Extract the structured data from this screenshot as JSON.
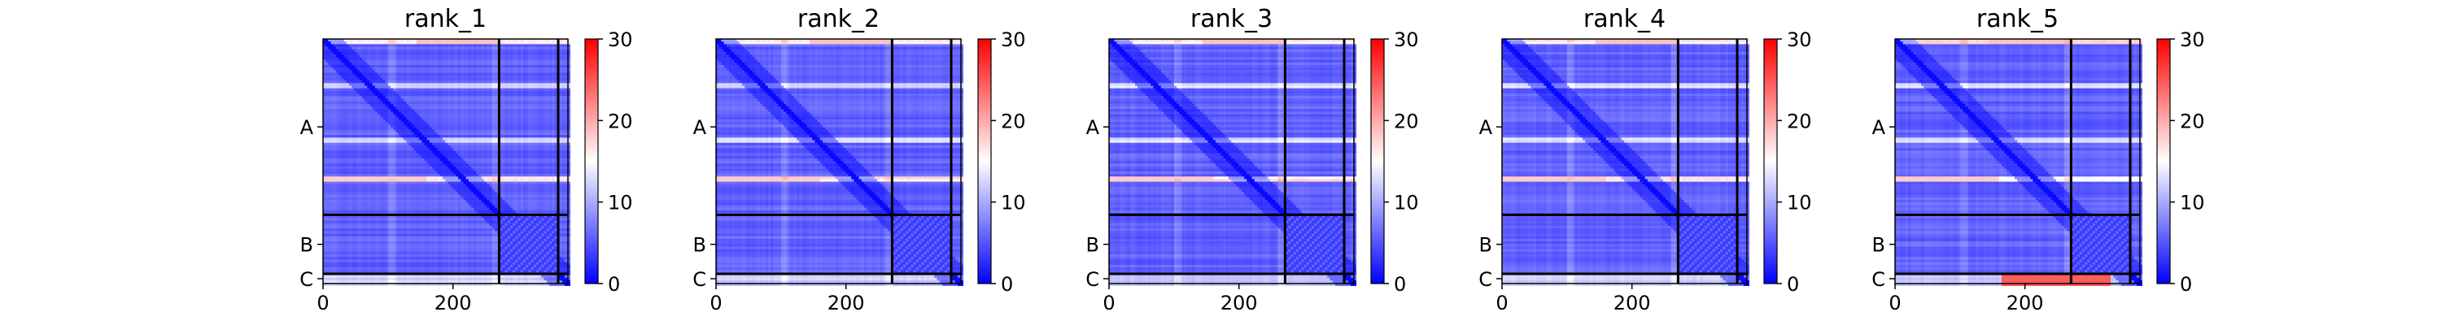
{
  "chart_data": [
    {
      "type": "heatmap",
      "title": "rank_1",
      "x_ticks": [
        "0",
        "200"
      ],
      "y_ticks": [
        "A",
        "B",
        "C"
      ],
      "chain_boundaries": [
        271,
        362,
        377
      ],
      "x_range": [
        0,
        377
      ],
      "colorbar": {
        "ticks": [
          "0",
          "10",
          "20",
          "30"
        ],
        "range": [
          0,
          30
        ]
      },
      "high_error_band_chain": "",
      "colormap": [
        "#0000ff",
        "#ffffff",
        "#ff0000"
      ]
    },
    {
      "type": "heatmap",
      "title": "rank_2",
      "x_ticks": [
        "0",
        "200"
      ],
      "y_ticks": [
        "A",
        "B",
        "C"
      ],
      "chain_boundaries": [
        271,
        362,
        377
      ],
      "x_range": [
        0,
        377
      ],
      "colorbar": {
        "ticks": [
          "0",
          "10",
          "20",
          "30"
        ],
        "range": [
          0,
          30
        ]
      },
      "high_error_band_chain": "",
      "colormap": [
        "#0000ff",
        "#ffffff",
        "#ff0000"
      ]
    },
    {
      "type": "heatmap",
      "title": "rank_3",
      "x_ticks": [
        "0",
        "200"
      ],
      "y_ticks": [
        "A",
        "B",
        "C"
      ],
      "chain_boundaries": [
        271,
        362,
        377
      ],
      "x_range": [
        0,
        377
      ],
      "colorbar": {
        "ticks": [
          "0",
          "10",
          "20",
          "30"
        ],
        "range": [
          0,
          30
        ]
      },
      "high_error_band_chain": "",
      "colormap": [
        "#0000ff",
        "#ffffff",
        "#ff0000"
      ]
    },
    {
      "type": "heatmap",
      "title": "rank_4",
      "x_ticks": [
        "0",
        "200"
      ],
      "y_ticks": [
        "A",
        "B",
        "C"
      ],
      "chain_boundaries": [
        271,
        362,
        377
      ],
      "x_range": [
        0,
        377
      ],
      "colorbar": {
        "ticks": [
          "0",
          "10",
          "20",
          "30"
        ],
        "range": [
          0,
          30
        ]
      },
      "high_error_band_chain": "",
      "colormap": [
        "#0000ff",
        "#ffffff",
        "#ff0000"
      ]
    },
    {
      "type": "heatmap",
      "title": "rank_5",
      "x_ticks": [
        "0",
        "200"
      ],
      "y_ticks": [
        "A",
        "B",
        "C"
      ],
      "chain_boundaries": [
        271,
        362,
        377
      ],
      "x_range": [
        0,
        377
      ],
      "colorbar": {
        "ticks": [
          "0",
          "10",
          "20",
          "30"
        ],
        "range": [
          0,
          30
        ]
      },
      "high_error_band_chain": "C",
      "colormap": [
        "#0000ff",
        "#ffffff",
        "#ff0000"
      ]
    }
  ]
}
